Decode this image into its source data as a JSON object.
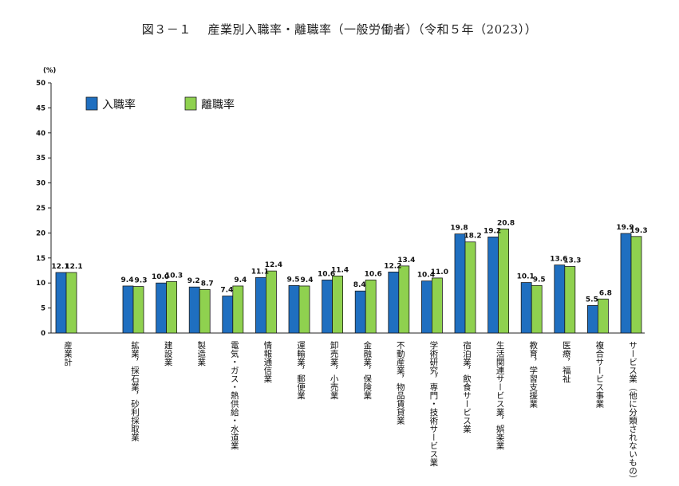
{
  "chart_data": {
    "type": "bar",
    "title": "図３－１　 産業別入職率・離職率（一般労働者）（令和５年（2023））",
    "y_unit": "(%)",
    "ylim": [
      0,
      50
    ],
    "y_ticks": [
      "0",
      "5",
      "10",
      "15",
      "20",
      "25",
      "30",
      "35",
      "40",
      "45",
      "50"
    ],
    "legend_position": "top-left",
    "categories": [
      "産業計",
      "鉱業，採石業，砂利採取業",
      "建設業",
      "製造業",
      "電気・ガス・熱供給・水道業",
      "情報通信業",
      "運輸業，郵便業",
      "卸売業，小売業",
      "金融業，保険業",
      "不動産業，物品賃貸業",
      "学術研究，専門・技術サービス業",
      "宿泊業，飲食サービス業",
      "生活関連サービス業，娯楽業",
      "教育，学習支援業",
      "医療，福祉",
      "複合サービス事業",
      "サービス業（他に分類されないもの）"
    ],
    "series": [
      {
        "name": "入職率",
        "color": "#1f6fc0",
        "values": [
          12.1,
          9.4,
          10.0,
          9.2,
          7.4,
          11.1,
          9.5,
          10.6,
          8.4,
          12.2,
          10.4,
          19.8,
          19.2,
          10.1,
          13.6,
          5.5,
          19.9
        ],
        "labels": [
          "12.1",
          "9.4",
          "10.0",
          "9.2",
          "7.4",
          "11.1",
          "9.5",
          "10.6",
          "8.4",
          "12.2",
          "10.4",
          "19.8",
          "19.2",
          "10.1",
          "13.6",
          "5.5",
          "19.9"
        ]
      },
      {
        "name": "離職率",
        "color": "#8fd14f",
        "values": [
          12.1,
          9.3,
          10.3,
          8.7,
          9.4,
          12.4,
          9.4,
          11.4,
          10.6,
          13.4,
          11.0,
          18.2,
          20.8,
          9.5,
          13.3,
          6.8,
          19.3
        ],
        "labels": [
          "12.1",
          "9.3",
          "10.3",
          "8.7",
          "9.4",
          "12.4",
          "9.4",
          "11.4",
          "10.6",
          "13.4",
          "11.0",
          "18.2",
          "20.8",
          "9.5",
          "13.3",
          "6.8",
          "19.3"
        ]
      }
    ]
  }
}
